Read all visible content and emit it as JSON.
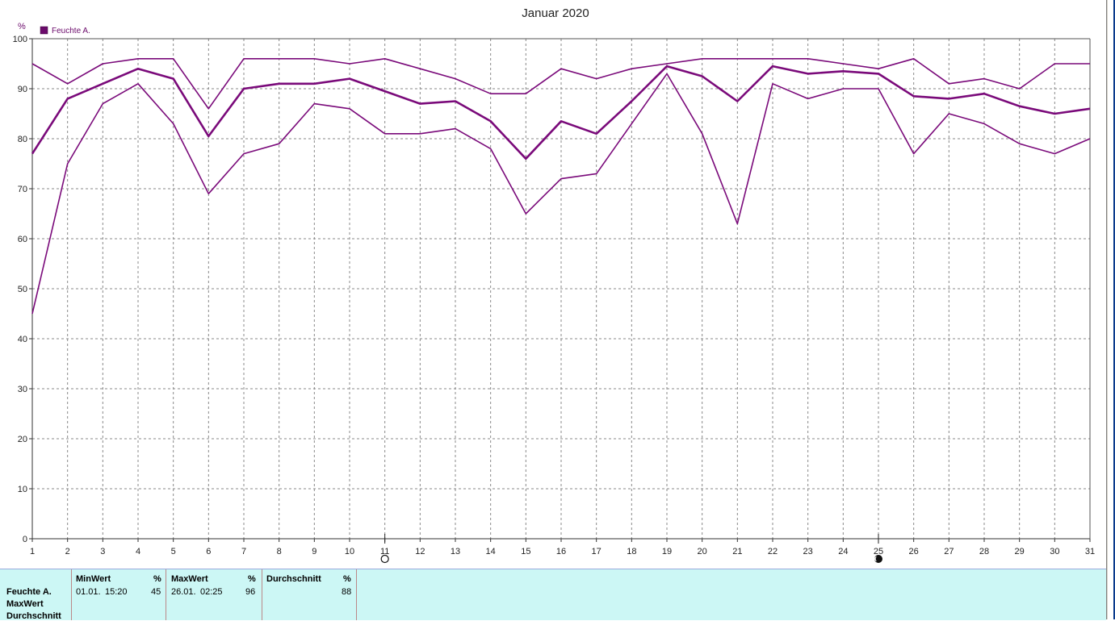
{
  "chart_data": {
    "type": "line",
    "title": "Januar 2020",
    "ylabel": "%",
    "legend": {
      "label": "Feuchte A.",
      "color": "#6b0a6b",
      "placement": "top-left"
    },
    "x": [
      1,
      2,
      3,
      4,
      5,
      6,
      7,
      8,
      9,
      10,
      11,
      12,
      13,
      14,
      15,
      16,
      17,
      18,
      19,
      20,
      21,
      22,
      23,
      24,
      25,
      26,
      27,
      28,
      29,
      30,
      31
    ],
    "x_ticks": [
      "1",
      "2",
      "3",
      "4",
      "5",
      "6",
      "7",
      "8",
      "9",
      "10",
      "11",
      "12",
      "13",
      "14",
      "15",
      "16",
      "17",
      "18",
      "19",
      "20",
      "21",
      "22",
      "23",
      "24",
      "25",
      "26",
      "27",
      "28",
      "29",
      "30",
      "31"
    ],
    "y_ticks": [
      "0",
      "10",
      "20",
      "30",
      "40",
      "50",
      "60",
      "70",
      "80",
      "90",
      "100"
    ],
    "xlim": [
      1,
      31
    ],
    "ylim": [
      0,
      100
    ],
    "grid": true,
    "series": [
      {
        "role": "max",
        "values": [
          95,
          91,
          95,
          96,
          96,
          86,
          96,
          96,
          96,
          95,
          96,
          94,
          92,
          89,
          89,
          94,
          92,
          94,
          95,
          96,
          96,
          96,
          96,
          95,
          94,
          96,
          91,
          92,
          90,
          95,
          95
        ]
      },
      {
        "role": "average",
        "values": [
          77,
          88,
          91,
          94,
          92,
          80.5,
          90,
          91,
          91,
          92,
          89.5,
          87,
          87.5,
          83.5,
          76,
          83.5,
          81,
          87.5,
          94.5,
          92.5,
          87.5,
          94.5,
          93,
          93.5,
          93,
          88.5,
          88,
          89,
          86.5,
          85,
          86
        ]
      },
      {
        "role": "min",
        "values": [
          45,
          75,
          87,
          91,
          83,
          69,
          77,
          79,
          87,
          86,
          81,
          81,
          82,
          78,
          65,
          72,
          73,
          83,
          93,
          81,
          63,
          91,
          88,
          90,
          90,
          77,
          85,
          83,
          79,
          77,
          80
        ]
      }
    ],
    "moon_markers": [
      {
        "day": 11,
        "phase": "full"
      },
      {
        "day": 25,
        "phase": "new"
      }
    ]
  },
  "stats": {
    "row_labels": [
      "Feuchte A.",
      "MaxWert",
      "Durchschnitt"
    ],
    "columns": [
      {
        "header": "MinWert",
        "unit": "%",
        "date": "01.01.",
        "time": "15:20",
        "value": "45"
      },
      {
        "header": "MaxWert",
        "unit": "%",
        "date": "26.01.",
        "time": "02:25",
        "value": "96"
      },
      {
        "header": "Durchschnitt",
        "unit": "%",
        "date": "",
        "time": "",
        "value": "88"
      }
    ]
  },
  "colors": {
    "series": "#7a0a7a",
    "grid": "#888888",
    "panel_bg": "#ccf7f5"
  }
}
